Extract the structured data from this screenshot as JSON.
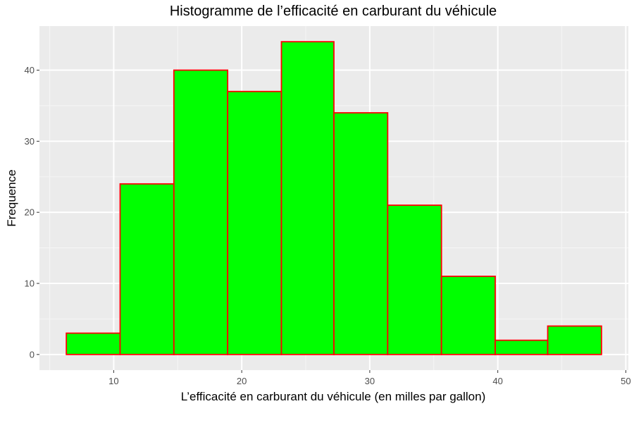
{
  "chart_data": {
    "type": "bar",
    "title": "Histogramme de l’efficacité en carburant du véhicule",
    "xlabel": "L’efficacité en carburant du véhicule (en milles par gallon)",
    "ylabel": "Frequence",
    "bins": [
      {
        "x0": 6.3,
        "x1": 10.5,
        "count": 3
      },
      {
        "x0": 10.5,
        "x1": 14.7,
        "count": 24
      },
      {
        "x0": 14.7,
        "x1": 18.9,
        "count": 40
      },
      {
        "x0": 18.9,
        "x1": 23.1,
        "count": 37
      },
      {
        "x0": 23.1,
        "x1": 27.2,
        "count": 44
      },
      {
        "x0": 27.2,
        "x1": 31.4,
        "count": 34
      },
      {
        "x0": 31.4,
        "x1": 35.6,
        "count": 21
      },
      {
        "x0": 35.6,
        "x1": 39.8,
        "count": 11
      },
      {
        "x0": 39.8,
        "x1": 43.9,
        "count": 2
      },
      {
        "x0": 43.9,
        "x1": 48.1,
        "count": 4
      }
    ],
    "xlim": [
      4.2,
      50.2
    ],
    "ylim": [
      -2.2,
      46.2
    ],
    "x_ticks": [
      10,
      20,
      30,
      40,
      50
    ],
    "y_ticks": [
      0,
      10,
      20,
      30,
      40
    ],
    "x_tick_labels": [
      "10",
      "20",
      "30",
      "40",
      "50"
    ],
    "y_tick_labels": [
      "0",
      "10",
      "20",
      "30",
      "40"
    ],
    "grid": true,
    "legend": "none",
    "colors": {
      "bar_fill": "#00ff00",
      "bar_stroke": "#ff0000",
      "panel_background": "#ebebeb",
      "grid_major": "#ffffff",
      "grid_minor": "#f5f5f5",
      "tick_label": "#4d4d4d",
      "tick_mark": "#333333",
      "text": "#000000"
    }
  }
}
